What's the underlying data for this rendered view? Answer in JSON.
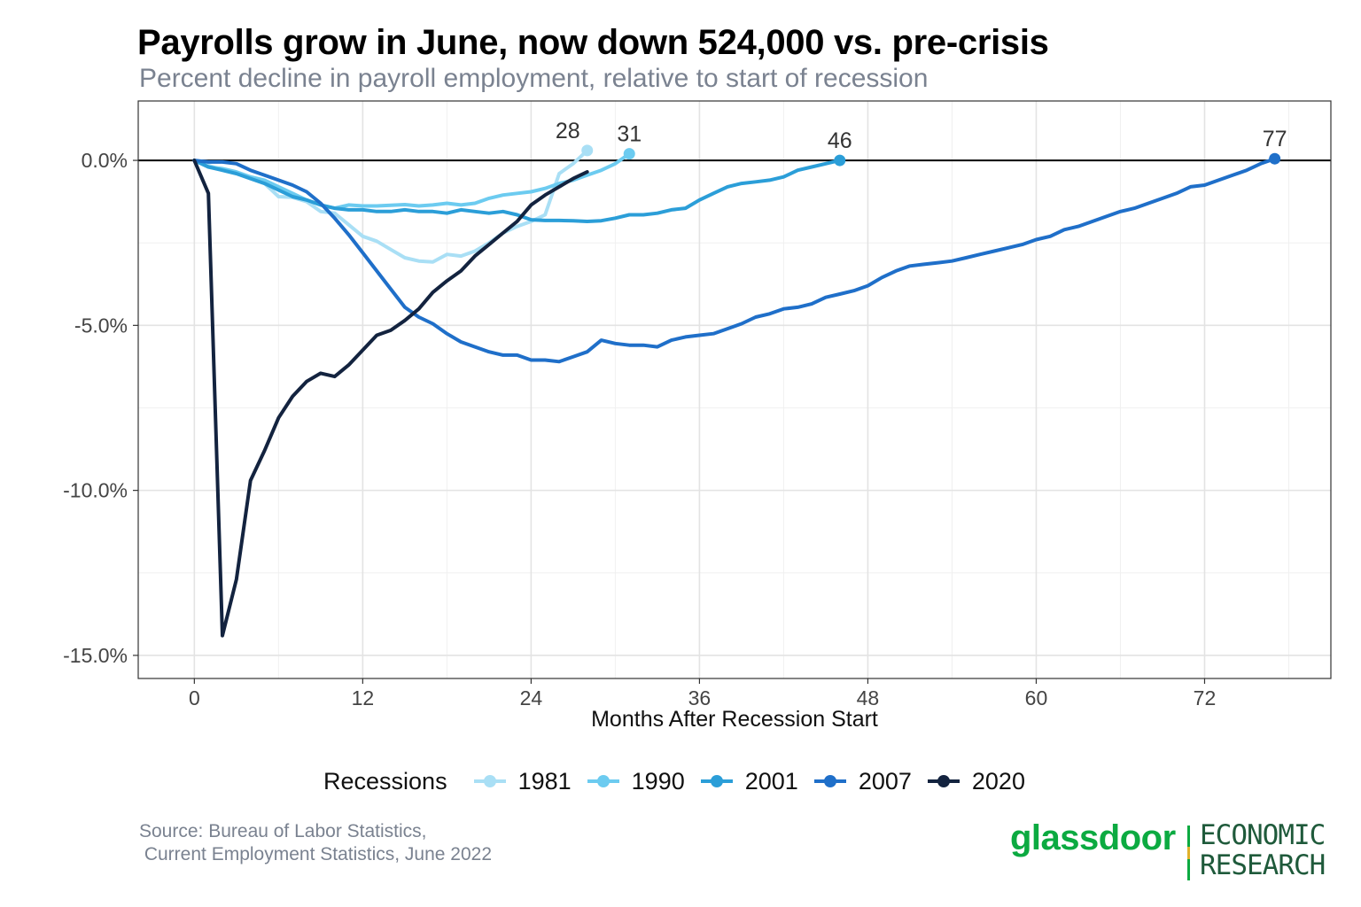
{
  "title": "Payrolls grow in June, now down 524,000 vs. pre-crisis",
  "subtitle": "Percent decline in payroll employment, relative to start of recession",
  "source": [
    "Source: Bureau of Labor Statistics,",
    " Current Employment Statistics, June 2022"
  ],
  "brand": {
    "word": "glassdoor",
    "line1": "ECONOMIC",
    "line2": "RESEARCH"
  },
  "chart_data": {
    "type": "line",
    "xlabel": "Months After Recession Start",
    "ylabel": "",
    "xlim": [
      -4,
      81
    ],
    "ylim": [
      -15.7,
      1.8
    ],
    "xticks": [
      0,
      12,
      24,
      36,
      48,
      60,
      72
    ],
    "yticks": [
      0,
      -5,
      -10,
      -15
    ],
    "ytick_labels": [
      "0.0%",
      "-5.0%",
      "-10.0%",
      "-15.0%"
    ],
    "grid": true,
    "legend": {
      "title": "Recessions",
      "position": "bottom"
    },
    "series": [
      {
        "name": "1981",
        "color": "#a9dff5",
        "endpoint_label": "28",
        "x": [
          0,
          1,
          2,
          3,
          4,
          5,
          6,
          7,
          8,
          9,
          10,
          11,
          12,
          13,
          14,
          15,
          16,
          17,
          18,
          19,
          20,
          21,
          22,
          23,
          24,
          25,
          26,
          27,
          28
        ],
        "y": [
          0,
          -0.15,
          -0.3,
          -0.4,
          -0.55,
          -0.7,
          -1.1,
          -1.12,
          -1.25,
          -1.55,
          -1.6,
          -1.95,
          -2.3,
          -2.45,
          -2.7,
          -2.95,
          -3.05,
          -3.08,
          -2.85,
          -2.9,
          -2.75,
          -2.5,
          -2.2,
          -2.0,
          -1.85,
          -1.65,
          -0.4,
          -0.1,
          0.3
        ]
      },
      {
        "name": "1990",
        "color": "#6ccbf0",
        "endpoint_label": "31",
        "x": [
          0,
          1,
          2,
          3,
          4,
          5,
          6,
          7,
          8,
          9,
          10,
          11,
          12,
          13,
          14,
          15,
          16,
          17,
          18,
          19,
          20,
          21,
          22,
          23,
          24,
          25,
          26,
          27,
          28,
          29,
          30,
          31
        ],
        "y": [
          0,
          -0.2,
          -0.25,
          -0.35,
          -0.5,
          -0.6,
          -0.8,
          -1.0,
          -1.2,
          -1.35,
          -1.45,
          -1.35,
          -1.38,
          -1.38,
          -1.36,
          -1.34,
          -1.38,
          -1.35,
          -1.3,
          -1.35,
          -1.3,
          -1.15,
          -1.05,
          -1.0,
          -0.95,
          -0.85,
          -0.7,
          -0.6,
          -0.45,
          -0.3,
          -0.1,
          0.2
        ]
      },
      {
        "name": "2001",
        "color": "#2b9ed8",
        "endpoint_label": "46",
        "x": [
          0,
          1,
          2,
          3,
          4,
          5,
          6,
          7,
          8,
          9,
          10,
          11,
          12,
          13,
          14,
          15,
          16,
          17,
          18,
          19,
          20,
          21,
          22,
          23,
          24,
          25,
          26,
          27,
          28,
          29,
          30,
          31,
          32,
          33,
          34,
          35,
          36,
          37,
          38,
          39,
          40,
          41,
          42,
          43,
          44,
          45,
          46
        ],
        "y": [
          0,
          -0.2,
          -0.3,
          -0.4,
          -0.55,
          -0.7,
          -0.9,
          -1.1,
          -1.2,
          -1.35,
          -1.45,
          -1.5,
          -1.5,
          -1.55,
          -1.55,
          -1.5,
          -1.55,
          -1.55,
          -1.6,
          -1.5,
          -1.55,
          -1.6,
          -1.55,
          -1.65,
          -1.8,
          -1.82,
          -1.82,
          -1.83,
          -1.85,
          -1.83,
          -1.75,
          -1.65,
          -1.65,
          -1.6,
          -1.5,
          -1.45,
          -1.2,
          -1.0,
          -0.8,
          -0.7,
          -0.65,
          -0.6,
          -0.5,
          -0.3,
          -0.2,
          -0.1,
          0.0
        ]
      },
      {
        "name": "2007",
        "color": "#1f6fc9",
        "endpoint_label": "77",
        "x": [
          0,
          1,
          2,
          3,
          4,
          5,
          6,
          7,
          8,
          9,
          10,
          11,
          12,
          13,
          14,
          15,
          16,
          17,
          18,
          19,
          20,
          21,
          22,
          23,
          24,
          25,
          26,
          27,
          28,
          29,
          30,
          31,
          32,
          33,
          34,
          35,
          36,
          37,
          38,
          39,
          40,
          41,
          42,
          43,
          44,
          45,
          46,
          47,
          48,
          49,
          50,
          51,
          52,
          53,
          54,
          55,
          56,
          57,
          58,
          59,
          60,
          61,
          62,
          63,
          64,
          65,
          66,
          67,
          68,
          69,
          70,
          71,
          72,
          73,
          74,
          75,
          76,
          77
        ],
        "y": [
          0,
          -0.05,
          -0.05,
          -0.1,
          -0.3,
          -0.45,
          -0.6,
          -0.75,
          -0.95,
          -1.3,
          -1.75,
          -2.25,
          -2.8,
          -3.35,
          -3.9,
          -4.45,
          -4.75,
          -4.95,
          -5.25,
          -5.5,
          -5.65,
          -5.8,
          -5.9,
          -5.9,
          -6.05,
          -6.05,
          -6.1,
          -5.95,
          -5.8,
          -5.45,
          -5.55,
          -5.6,
          -5.6,
          -5.65,
          -5.45,
          -5.35,
          -5.3,
          -5.25,
          -5.1,
          -4.95,
          -4.75,
          -4.65,
          -4.5,
          -4.45,
          -4.35,
          -4.15,
          -4.05,
          -3.95,
          -3.8,
          -3.55,
          -3.35,
          -3.2,
          -3.15,
          -3.1,
          -3.05,
          -2.95,
          -2.85,
          -2.75,
          -2.65,
          -2.55,
          -2.4,
          -2.3,
          -2.1,
          -2.0,
          -1.85,
          -1.7,
          -1.55,
          -1.45,
          -1.3,
          -1.15,
          -1.0,
          -0.8,
          -0.75,
          -0.6,
          -0.45,
          -0.3,
          -0.1,
          0.05
        ]
      },
      {
        "name": "2020",
        "color": "#13233f",
        "endpoint_label": "",
        "x": [
          0,
          1,
          2,
          3,
          4,
          5,
          6,
          7,
          8,
          9,
          10,
          11,
          12,
          13,
          14,
          15,
          16,
          17,
          18,
          19,
          20,
          21,
          22,
          23,
          24,
          25,
          26,
          27,
          28
        ],
        "y": [
          0,
          -1.0,
          -14.4,
          -12.7,
          -9.7,
          -8.8,
          -7.8,
          -7.15,
          -6.7,
          -6.45,
          -6.55,
          -6.2,
          -5.75,
          -5.3,
          -5.15,
          -4.85,
          -4.5,
          -4.0,
          -3.65,
          -3.35,
          -2.9,
          -2.55,
          -2.2,
          -1.85,
          -1.35,
          -1.05,
          -0.8,
          -0.55,
          -0.35
        ]
      }
    ]
  }
}
